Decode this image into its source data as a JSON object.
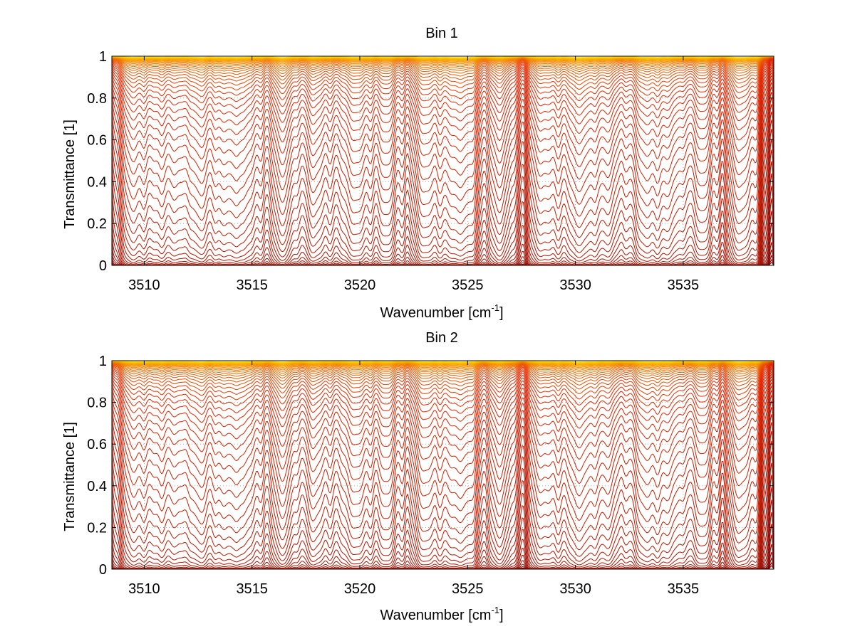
{
  "chart_data": [
    {
      "type": "line",
      "title": "Bin 1",
      "xlabel": "Wavenumber [cm",
      "xlabel_sup": "-1",
      "xlabel_end": "]",
      "ylabel": "Transmittance [1]",
      "xlim": [
        3508.5,
        3539.2
      ],
      "ylim": [
        0,
        1
      ],
      "xticks": [
        3510,
        3515,
        3520,
        3525,
        3530,
        3535
      ],
      "xtick_labels": [
        "3510",
        "3515",
        "3520",
        "3525",
        "3530",
        "3535"
      ],
      "yticks": [
        0,
        0.2,
        0.4,
        0.6,
        0.8,
        1
      ],
      "ytick_labels": [
        "0",
        "0.2",
        "0.4",
        "0.6",
        "0.8",
        "1"
      ],
      "grid": true,
      "num_series": 60,
      "color_range": [
        "#7a0000",
        "#ffdd00"
      ],
      "absorption_lines": [
        3509.3,
        3510.1,
        3511.4,
        3512.6,
        3513.6,
        3514.7,
        3516.4,
        3517.9,
        3519.8,
        3521.3,
        3523.0,
        3524.6,
        3526.5,
        3528.5,
        3530.2,
        3531.6,
        3533.1,
        3534.3,
        3535.9,
        3537.7
      ],
      "line_minima_lowest_visible_curve": [
        0.25,
        0.3,
        0.22,
        0.2,
        0.25,
        0.2,
        0.1,
        0.2,
        0.15,
        0.2,
        0.15,
        0.1,
        0.2,
        0.2,
        0.1,
        0.25,
        0.2,
        0.2,
        0.2,
        0.1
      ]
    },
    {
      "type": "line",
      "title": "Bin 2",
      "xlabel": "Wavenumber [cm",
      "xlabel_sup": "-1",
      "xlabel_end": "]",
      "ylabel": "Transmittance [1]",
      "xlim": [
        3508.5,
        3539.2
      ],
      "ylim": [
        0,
        1
      ],
      "xticks": [
        3510,
        3515,
        3520,
        3525,
        3530,
        3535
      ],
      "xtick_labels": [
        "3510",
        "3515",
        "3520",
        "3525",
        "3530",
        "3535"
      ],
      "yticks": [
        0,
        0.2,
        0.4,
        0.6,
        0.8,
        1
      ],
      "ytick_labels": [
        "0",
        "0.2",
        "0.4",
        "0.6",
        "0.8",
        "1"
      ],
      "grid": true,
      "num_series": 60,
      "color_range": [
        "#7a0000",
        "#ffdd00"
      ],
      "absorption_lines": [
        3509.3,
        3510.1,
        3511.4,
        3512.6,
        3513.6,
        3514.7,
        3516.4,
        3517.9,
        3519.8,
        3521.3,
        3523.0,
        3524.6,
        3526.5,
        3528.5,
        3530.2,
        3531.6,
        3533.1,
        3534.3,
        3535.9,
        3537.7
      ],
      "line_minima_lowest_visible_curve": [
        0.3,
        0.3,
        0.22,
        0.2,
        0.25,
        0.2,
        0.1,
        0.2,
        0.15,
        0.2,
        0.15,
        0.12,
        0.2,
        0.2,
        0.1,
        0.25,
        0.2,
        0.2,
        0.2,
        0.12
      ]
    }
  ]
}
